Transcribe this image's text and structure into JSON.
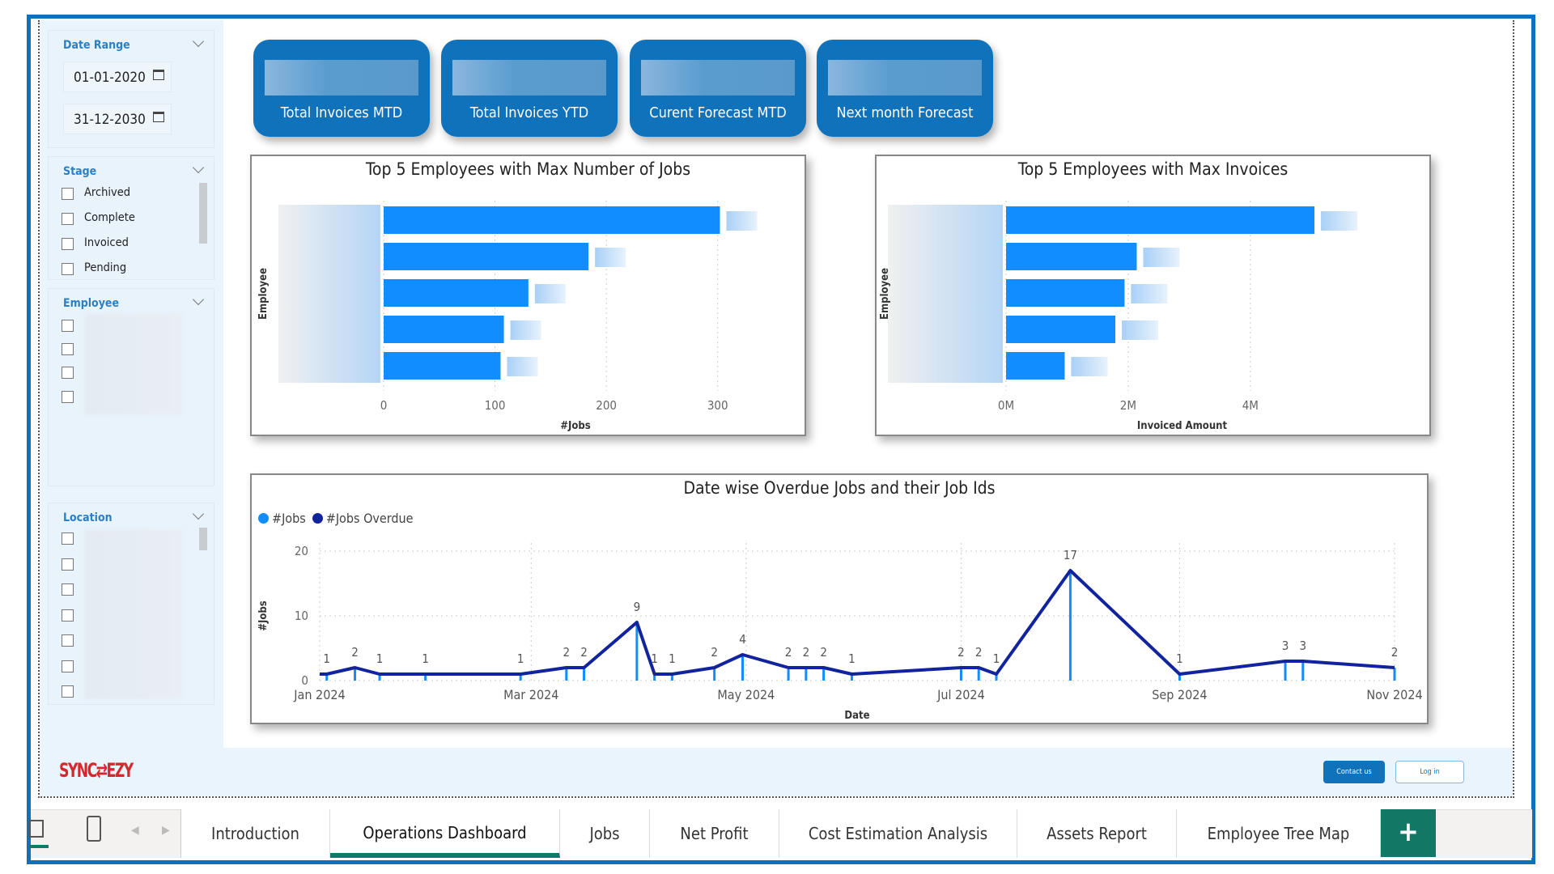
{
  "sidebar": {
    "date_range": {
      "title": "Date Range",
      "start": "01-01-2020",
      "end": "31-12-2030"
    },
    "stage": {
      "title": "Stage",
      "options": [
        "Archived",
        "Complete",
        "Invoiced",
        "Pending"
      ]
    },
    "employee": {
      "title": "Employee"
    },
    "location": {
      "title": "Location"
    }
  },
  "cards": [
    {
      "label": "Total Invoices MTD"
    },
    {
      "label": "Total Invoices YTD"
    },
    {
      "label": "Curent Forecast MTD"
    },
    {
      "label": "Next month Forecast"
    }
  ],
  "chart_data": [
    {
      "type": "bar",
      "title": "Top 5 Employees with Max Number of Jobs",
      "xlabel": "#Jobs",
      "ylabel": "Employee",
      "xlim": [
        0,
        330
      ],
      "ticks": [
        "0",
        "100",
        "200",
        "300"
      ],
      "tick_values": [
        0,
        100,
        200,
        300
      ],
      "values": [
        302,
        184,
        130,
        108,
        105
      ]
    },
    {
      "type": "bar",
      "title": "Top 5 Employees with Max Invoices",
      "xlabel": "Invoiced Amount",
      "ylabel": "Employee",
      "xlim": [
        0,
        5500000
      ],
      "ticks": [
        "0M",
        "2M",
        "4M"
      ],
      "tick_values": [
        0,
        2000000,
        4000000
      ],
      "values": [
        5050000,
        2140000,
        1940000,
        1790000,
        960000
      ]
    },
    {
      "type": "line",
      "title": "Date wise Overdue Jobs and their Job Ids",
      "xlabel": "Date",
      "ylabel": "#Jobs",
      "ylim": [
        0,
        20
      ],
      "yticks": [
        "0",
        "10",
        "20"
      ],
      "xticks": [
        "Jan 2024",
        "Mar 2024",
        "May 2024",
        "Jul 2024",
        "Sep 2024",
        "Nov 2024"
      ],
      "xtick_days": [
        0,
        60,
        121,
        182,
        244,
        305
      ],
      "legend": [
        "#Jobs",
        "#Jobs Overdue"
      ],
      "points": [
        [
          2,
          1
        ],
        [
          10,
          2
        ],
        [
          17,
          1
        ],
        [
          30,
          1
        ],
        [
          57,
          1
        ],
        [
          70,
          2
        ],
        [
          75,
          2
        ],
        [
          90,
          9
        ],
        [
          95,
          1
        ],
        [
          100,
          1
        ],
        [
          112,
          2
        ],
        [
          120,
          4
        ],
        [
          133,
          2
        ],
        [
          138,
          2
        ],
        [
          143,
          2
        ],
        [
          151,
          1
        ],
        [
          182,
          2
        ],
        [
          187,
          2
        ],
        [
          192,
          1
        ],
        [
          213,
          17
        ],
        [
          244,
          1
        ],
        [
          274,
          3
        ],
        [
          279,
          3
        ],
        [
          305,
          2
        ]
      ]
    }
  ],
  "colors": {
    "jobs": "#118dff",
    "overdue": "#12239e",
    "brand": "#1172bc",
    "tab_accent": "#117865"
  },
  "footer": {
    "logo": "SYNC⇄EZY",
    "contact": "Contact us",
    "login": "Log in"
  },
  "tabs": [
    "Introduction",
    "Operations Dashboard",
    "Jobs",
    "Net Profit",
    "Cost Estimation Analysis",
    "Assets Report",
    "Employee Tree Map"
  ],
  "active_tab": "Operations Dashboard",
  "add_tab": "+"
}
